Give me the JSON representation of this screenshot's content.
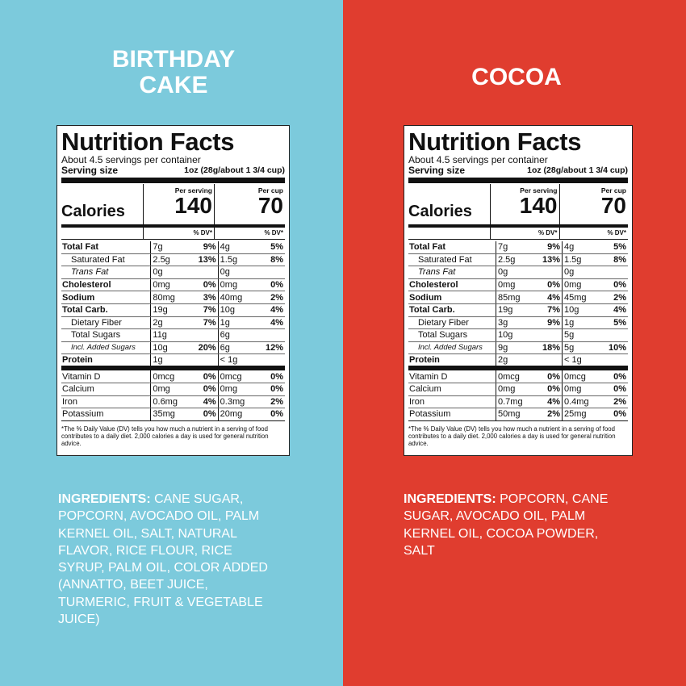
{
  "panels": [
    {
      "title": "BIRTHDAY CAKE",
      "label": {
        "heading": "Nutrition Facts",
        "servings": "About 4.5 servings per container",
        "serving_size_label": "Serving size",
        "serving_size": "1oz (28g/about 1 3/4 cup)",
        "calories_label": "Calories",
        "per_serving": "Per serving",
        "per_cup": "Per cup",
        "calories": [
          "140",
          "70"
        ],
        "dv_header": "% DV*",
        "rows": [
          [
            "Total Fat",
            "7g",
            "9%",
            "4g",
            "5%"
          ],
          [
            "Saturated Fat",
            "2.5g",
            "13%",
            "1.5g",
            "8%"
          ],
          [
            "Trans Fat",
            "0g",
            null,
            "0g",
            null
          ],
          [
            "Cholesterol",
            "0mg",
            "0%",
            "0mg",
            "0%"
          ],
          [
            "Sodium",
            "80mg",
            "3%",
            "40mg",
            "2%"
          ],
          [
            "Total Carb.",
            "19g",
            "7%",
            "10g",
            "4%"
          ],
          [
            "Dietary Fiber",
            "2g",
            "7%",
            "1g",
            "4%"
          ],
          [
            "Total Sugars",
            "11g",
            null,
            "6g",
            null
          ],
          [
            "Incl. Added Sugars",
            "10g",
            "20%",
            "6g",
            "12%"
          ],
          [
            "Protein",
            "1g",
            null,
            "< 1g",
            null
          ],
          [
            "Vitamin D",
            "0mcg",
            "0%",
            "0mcg",
            "0%"
          ],
          [
            "Calcium",
            "0mg",
            "0%",
            "0mg",
            "0%"
          ],
          [
            "Iron",
            "0.6mg",
            "4%",
            "0.3mg",
            "2%"
          ],
          [
            "Potassium",
            "35mg",
            "0%",
            "20mg",
            "0%"
          ]
        ],
        "footnote": "*The % Daily Value (DV) tells you how much a nutrient in a serving of food contributes to a daily diet. 2,000 calories a day is used for general nutrition advice."
      },
      "ingredients_label": "INGREDIENTS:",
      "ingredients": "CANE SUGAR, POPCORN, AVOCADO OIL, PALM KERNEL OIL, SALT, NATURAL FLAVOR, RICE FLOUR, RICE SYRUP, PALM OIL, COLOR ADDED (ANNATTO, BEET JUICE, TURMERIC, FRUIT & VEGETABLE JUICE)"
    },
    {
      "title": "COCOA",
      "label": {
        "heading": "Nutrition Facts",
        "servings": "About 4.5 servings per container",
        "serving_size_label": "Serving size",
        "serving_size": "1oz (28g/about 1 3/4 cup)",
        "calories_label": "Calories",
        "per_serving": "Per serving",
        "per_cup": "Per cup",
        "calories": [
          "140",
          "70"
        ],
        "dv_header": "% DV*",
        "rows": [
          [
            "Total Fat",
            "7g",
            "9%",
            "4g",
            "5%"
          ],
          [
            "Saturated Fat",
            "2.5g",
            "13%",
            "1.5g",
            "8%"
          ],
          [
            "Trans Fat",
            "0g",
            null,
            "0g",
            null
          ],
          [
            "Cholesterol",
            "0mg",
            "0%",
            "0mg",
            "0%"
          ],
          [
            "Sodium",
            "85mg",
            "4%",
            "45mg",
            "2%"
          ],
          [
            "Total Carb.",
            "19g",
            "7%",
            "10g",
            "4%"
          ],
          [
            "Dietary Fiber",
            "3g",
            "9%",
            "1g",
            "5%"
          ],
          [
            "Total Sugars",
            "10g",
            null,
            "5g",
            null
          ],
          [
            "Incl. Added Sugars",
            "9g",
            "18%",
            "5g",
            "10%"
          ],
          [
            "Protein",
            "2g",
            null,
            "< 1g",
            null
          ],
          [
            "Vitamin D",
            "0mcg",
            "0%",
            "0mcg",
            "0%"
          ],
          [
            "Calcium",
            "0mg",
            "0%",
            "0mg",
            "0%"
          ],
          [
            "Iron",
            "0.7mg",
            "4%",
            "0.4mg",
            "2%"
          ],
          [
            "Potassium",
            "50mg",
            "2%",
            "25mg",
            "0%"
          ]
        ],
        "footnote": "*The % Daily Value (DV) tells you how much a nutrient in a serving of food contributes to a daily diet. 2,000 calories a day is used for general nutrition advice."
      },
      "ingredients_label": "INGREDIENTS:",
      "ingredients": "POPCORN, CANE SUGAR, AVOCADO OIL, PALM KERNEL OIL, COCOA POWDER, SALT"
    }
  ]
}
